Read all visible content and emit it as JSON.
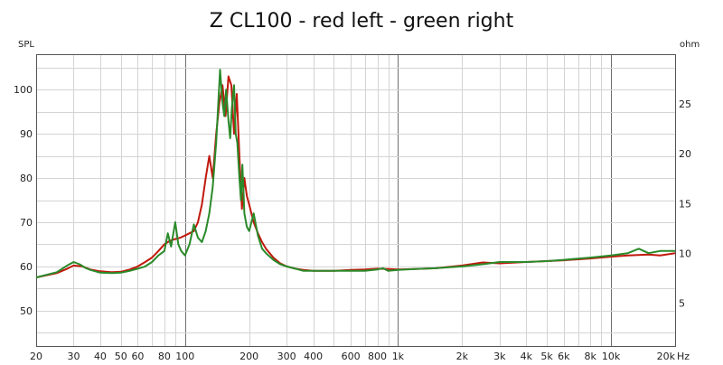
{
  "chart_data": {
    "type": "line",
    "title": "Z CL100 - red left - green right",
    "ylabel": "SPL",
    "ylabel_right": "ohm",
    "xlabel": "",
    "x_unit_suffix": "Hz",
    "x_scale": "log",
    "xlim": [
      20,
      20000
    ],
    "ylim": [
      42,
      108
    ],
    "ylim_right": [
      0.7,
      30
    ],
    "grid": true,
    "x_tick_labels": [
      {
        "value": 20,
        "label": "20"
      },
      {
        "value": 30,
        "label": "30"
      },
      {
        "value": 40,
        "label": "40"
      },
      {
        "value": 50,
        "label": "50"
      },
      {
        "value": 60,
        "label": "60"
      },
      {
        "value": 80,
        "label": "80"
      },
      {
        "value": 100,
        "label": "100"
      },
      {
        "value": 200,
        "label": "200"
      },
      {
        "value": 300,
        "label": "300"
      },
      {
        "value": 400,
        "label": "400"
      },
      {
        "value": 600,
        "label": "600"
      },
      {
        "value": 800,
        "label": "800"
      },
      {
        "value": 1000,
        "label": "1k"
      },
      {
        "value": 2000,
        "label": "2k"
      },
      {
        "value": 3000,
        "label": "3k"
      },
      {
        "value": 4000,
        "label": "4k"
      },
      {
        "value": 5000,
        "label": "5k"
      },
      {
        "value": 6000,
        "label": "6k"
      },
      {
        "value": 8000,
        "label": "8k"
      },
      {
        "value": 10000,
        "label": "10k"
      },
      {
        "value": 20000,
        "label": "20k"
      }
    ],
    "y_ticks": [
      50,
      60,
      70,
      80,
      90,
      100
    ],
    "y_ticks_right": [
      5,
      10,
      15,
      20,
      25
    ],
    "series": [
      {
        "color": "#c0190c",
        "x": [
          20,
          25,
          28,
          30,
          33,
          36,
          40,
          45,
          50,
          55,
          60,
          65,
          70,
          75,
          80,
          85,
          90,
          95,
          100,
          105,
          110,
          115,
          120,
          125,
          130,
          135,
          140,
          145,
          150,
          155,
          160,
          165,
          170,
          175,
          180,
          185,
          190,
          195,
          200,
          210,
          220,
          230,
          240,
          260,
          280,
          300,
          330,
          360,
          400,
          450,
          500,
          600,
          700,
          800,
          900,
          1000,
          1200,
          1500,
          2000,
          2500,
          3000,
          4000,
          5000,
          6000,
          8000,
          10000,
          12000,
          15000,
          17000,
          20000
        ],
        "y": [
          57.5,
          58.5,
          59.5,
          60.2,
          60.0,
          59.3,
          58.9,
          58.7,
          58.8,
          59.3,
          60.0,
          61.0,
          62.0,
          63.5,
          65.0,
          65.8,
          66.2,
          66.5,
          67.0,
          67.5,
          68.0,
          70.0,
          74.0,
          80.0,
          85.0,
          80.0,
          90.0,
          97.0,
          101.0,
          94.0,
          103.0,
          101.0,
          90.0,
          99.0,
          85.0,
          73.0,
          80.0,
          76.0,
          74.0,
          70.0,
          67.5,
          65.5,
          64.0,
          62.0,
          60.7,
          60.0,
          59.5,
          59.2,
          59.0,
          59.0,
          59.0,
          59.2,
          59.3,
          59.5,
          59.4,
          59.3,
          59.4,
          59.6,
          60.2,
          60.9,
          60.7,
          61.0,
          61.2,
          61.4,
          61.8,
          62.2,
          62.5,
          62.7,
          62.5,
          63.0
        ]
      },
      {
        "color": "#2a8a2a",
        "x": [
          20,
          25,
          28,
          30,
          32,
          34,
          36,
          40,
          45,
          50,
          55,
          60,
          65,
          70,
          75,
          80,
          83,
          86,
          90,
          93,
          96,
          100,
          105,
          110,
          115,
          120,
          125,
          130,
          135,
          140,
          143,
          146,
          150,
          153,
          156,
          160,
          163,
          166,
          170,
          173,
          176,
          180,
          183,
          186,
          190,
          195,
          200,
          205,
          210,
          220,
          230,
          240,
          260,
          280,
          300,
          330,
          360,
          400,
          450,
          500,
          600,
          700,
          800,
          850,
          900,
          1000,
          1200,
          1500,
          2000,
          2500,
          3000,
          4000,
          5000,
          6000,
          8000,
          10000,
          12000,
          13500,
          15000,
          17000,
          20000
        ],
        "y": [
          57.5,
          58.7,
          60.2,
          61.0,
          60.5,
          59.7,
          59.2,
          58.6,
          58.5,
          58.6,
          59.0,
          59.5,
          60.0,
          61.0,
          62.5,
          63.5,
          67.5,
          64.5,
          70.0,
          65.0,
          63.5,
          62.5,
          65.0,
          69.5,
          66.5,
          65.5,
          68.0,
          72.0,
          78.0,
          88.0,
          96.0,
          104.5,
          97.0,
          94.0,
          100.0,
          93.0,
          89.0,
          96.0,
          101.0,
          90.0,
          88.0,
          80.0,
          75.0,
          83.0,
          72.0,
          69.0,
          68.0,
          70.0,
          72.0,
          67.0,
          64.0,
          63.0,
          61.5,
          60.5,
          60.0,
          59.5,
          59.0,
          59.0,
          59.0,
          59.0,
          59.0,
          59.0,
          59.3,
          59.6,
          59.0,
          59.2,
          59.4,
          59.6,
          60.0,
          60.5,
          61.0,
          61.0,
          61.2,
          61.5,
          62.0,
          62.5,
          63.0,
          64.0,
          63.0,
          63.5,
          63.5
        ]
      }
    ]
  }
}
